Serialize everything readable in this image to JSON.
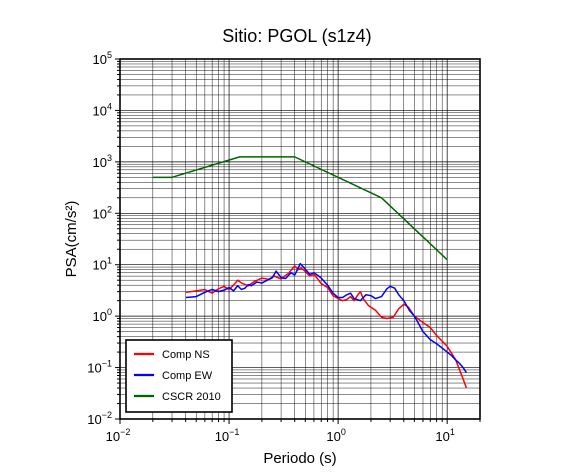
{
  "chart_data": {
    "type": "line",
    "title": "Sitio: PGOL (s1z4)",
    "xlabel": "Periodo (s)",
    "ylabel": "PSA(cm/s²)",
    "xscale": "log",
    "yscale": "log",
    "xlim": [
      0.01,
      20
    ],
    "ylim": [
      0.01,
      100000
    ],
    "grid": true,
    "legend_position": "bottom-left",
    "x_ticks": [
      {
        "base": "10",
        "exp": "−2"
      },
      {
        "base": "10",
        "exp": "−1"
      },
      {
        "base": "10",
        "exp": "0"
      },
      {
        "base": "10",
        "exp": "1"
      }
    ],
    "y_ticks": [
      {
        "base": "10",
        "exp": "−2"
      },
      {
        "base": "10",
        "exp": "−1"
      },
      {
        "base": "10",
        "exp": "0"
      },
      {
        "base": "10",
        "exp": "1"
      },
      {
        "base": "10",
        "exp": "2"
      },
      {
        "base": "10",
        "exp": "3"
      },
      {
        "base": "10",
        "exp": "4"
      },
      {
        "base": "10",
        "exp": "5"
      }
    ],
    "series": [
      {
        "name": "Comp NS",
        "color": "#ff0000",
        "points": [
          [
            0.04,
            2.9
          ],
          [
            0.05,
            3.1
          ],
          [
            0.06,
            3.3
          ],
          [
            0.065,
            3.0
          ],
          [
            0.07,
            2.8
          ],
          [
            0.08,
            3.4
          ],
          [
            0.09,
            3.8
          ],
          [
            0.1,
            3.3
          ],
          [
            0.11,
            4.0
          ],
          [
            0.12,
            5.0
          ],
          [
            0.13,
            4.4
          ],
          [
            0.15,
            3.9
          ],
          [
            0.17,
            4.7
          ],
          [
            0.2,
            5.5
          ],
          [
            0.23,
            5.2
          ],
          [
            0.26,
            6.0
          ],
          [
            0.3,
            5.3
          ],
          [
            0.35,
            6.8
          ],
          [
            0.4,
            9.5
          ],
          [
            0.43,
            8.0
          ],
          [
            0.46,
            8.6
          ],
          [
            0.5,
            7.4
          ],
          [
            0.55,
            6.0
          ],
          [
            0.6,
            6.5
          ],
          [
            0.65,
            5.3
          ],
          [
            0.7,
            4.3
          ],
          [
            0.8,
            3.6
          ],
          [
            0.9,
            2.5
          ],
          [
            1.0,
            2.2
          ],
          [
            1.1,
            2.0
          ],
          [
            1.2,
            2.1
          ],
          [
            1.3,
            2.4
          ],
          [
            1.4,
            2.0
          ],
          [
            1.5,
            2.5
          ],
          [
            1.6,
            3.0
          ],
          [
            1.7,
            2.2
          ],
          [
            1.9,
            1.6
          ],
          [
            2.2,
            1.3
          ],
          [
            2.5,
            0.95
          ],
          [
            2.8,
            0.9
          ],
          [
            3.2,
            0.95
          ],
          [
            3.6,
            1.4
          ],
          [
            4.0,
            1.7
          ],
          [
            4.4,
            1.5
          ],
          [
            5.0,
            1.0
          ],
          [
            6.0,
            0.75
          ],
          [
            7.0,
            0.6
          ],
          [
            8.0,
            0.42
          ],
          [
            10.0,
            0.26
          ],
          [
            12.0,
            0.14
          ],
          [
            14.0,
            0.06
          ],
          [
            15.0,
            0.04
          ]
        ]
      },
      {
        "name": "Comp EW",
        "color": "#0000ff",
        "points": [
          [
            0.04,
            2.3
          ],
          [
            0.05,
            2.4
          ],
          [
            0.06,
            2.9
          ],
          [
            0.07,
            3.3
          ],
          [
            0.08,
            3.0
          ],
          [
            0.09,
            3.2
          ],
          [
            0.1,
            3.6
          ],
          [
            0.11,
            3.1
          ],
          [
            0.12,
            3.9
          ],
          [
            0.13,
            3.3
          ],
          [
            0.14,
            3.5
          ],
          [
            0.15,
            4.1
          ],
          [
            0.16,
            3.9
          ],
          [
            0.18,
            4.6
          ],
          [
            0.2,
            4.4
          ],
          [
            0.22,
            4.9
          ],
          [
            0.25,
            5.6
          ],
          [
            0.27,
            7.5
          ],
          [
            0.3,
            5.6
          ],
          [
            0.33,
            5.4
          ],
          [
            0.37,
            7.0
          ],
          [
            0.4,
            6.3
          ],
          [
            0.45,
            10.5
          ],
          [
            0.5,
            8.2
          ],
          [
            0.55,
            6.5
          ],
          [
            0.6,
            7.0
          ],
          [
            0.65,
            6.2
          ],
          [
            0.7,
            5.5
          ],
          [
            0.8,
            4.0
          ],
          [
            0.9,
            2.8
          ],
          [
            1.0,
            2.3
          ],
          [
            1.1,
            2.3
          ],
          [
            1.2,
            2.6
          ],
          [
            1.3,
            2.8
          ],
          [
            1.4,
            2.2
          ],
          [
            1.5,
            2.1
          ],
          [
            1.6,
            2.0
          ],
          [
            1.8,
            2.6
          ],
          [
            2.0,
            2.5
          ],
          [
            2.2,
            2.2
          ],
          [
            2.5,
            2.4
          ],
          [
            2.8,
            3.4
          ],
          [
            3.0,
            3.8
          ],
          [
            3.3,
            3.5
          ],
          [
            3.6,
            2.6
          ],
          [
            4.0,
            2.0
          ],
          [
            4.5,
            1.3
          ],
          [
            5.0,
            1.0
          ],
          [
            5.5,
            0.7
          ],
          [
            6.0,
            0.5
          ],
          [
            7.0,
            0.35
          ],
          [
            8.0,
            0.29
          ],
          [
            9.0,
            0.24
          ],
          [
            10.0,
            0.2
          ],
          [
            11.0,
            0.17
          ],
          [
            12.0,
            0.14
          ],
          [
            13.0,
            0.12
          ],
          [
            14.0,
            0.1
          ],
          [
            15.0,
            0.08
          ]
        ]
      },
      {
        "name": "CSCR 2010",
        "color": "#006400",
        "points": [
          [
            0.02,
            500
          ],
          [
            0.03,
            500
          ],
          [
            0.125,
            1250
          ],
          [
            0.4,
            1250
          ],
          [
            2.5,
            200
          ],
          [
            10.0,
            12.5
          ]
        ]
      }
    ]
  }
}
